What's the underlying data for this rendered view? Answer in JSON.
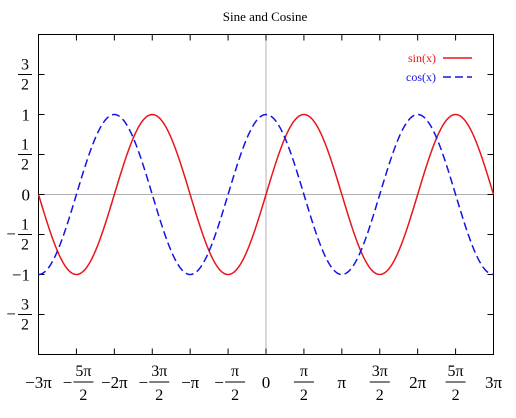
{
  "chart_data": {
    "type": "line",
    "title": "Sine and Cosine",
    "xlabel": "",
    "ylabel": "",
    "xlim": [
      -9.42478,
      9.42478
    ],
    "ylim": [
      -2,
      2
    ],
    "grid": false,
    "zero_axes": true,
    "legend": "top-right",
    "x_ticks": [
      {
        "num": "−3π"
      },
      {
        "num": "−",
        "frac_num": "5π",
        "frac_den": "2"
      },
      {
        "num": "−2π"
      },
      {
        "num": "−",
        "frac_num": "3π",
        "frac_den": "2"
      },
      {
        "num": "−π"
      },
      {
        "num": "−",
        "frac_num": "π",
        "frac_den": "2"
      },
      {
        "num": "0"
      },
      {
        "num": "",
        "frac_num": "π",
        "frac_den": "2"
      },
      {
        "num": "π"
      },
      {
        "num": "",
        "frac_num": "3π",
        "frac_den": "2"
      },
      {
        "num": "2π"
      },
      {
        "num": "",
        "frac_num": "5π",
        "frac_den": "2"
      },
      {
        "num": "3π"
      }
    ],
    "y_ticks": [
      {
        "num": "",
        "frac_num": "3",
        "frac_den": "2"
      },
      {
        "num": "1"
      },
      {
        "num": "",
        "frac_num": "1",
        "frac_den": "2"
      },
      {
        "num": "0"
      },
      {
        "num": "−",
        "frac_num": "1",
        "frac_den": "2"
      },
      {
        "num": "−1"
      },
      {
        "num": "−",
        "frac_num": "3",
        "frac_den": "2"
      }
    ],
    "series": [
      {
        "name": "sin(x)",
        "function": "sin",
        "color": "#e8161b",
        "style": "solid"
      },
      {
        "name": "cos(x)",
        "function": "cos",
        "color": "#1414e6",
        "style": "dashed"
      }
    ]
  }
}
